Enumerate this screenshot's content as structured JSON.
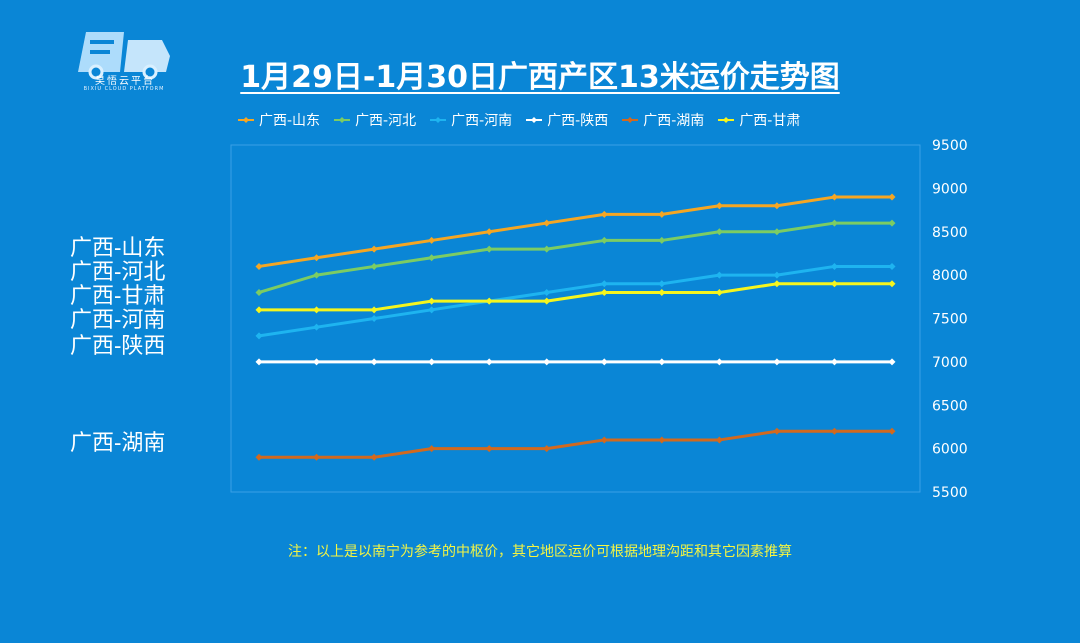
{
  "logo": {
    "name": "旲悟云平台",
    "subtitle": "BIXIU CLOUD PLATFORM",
    "icon": "truck-logo-icon"
  },
  "chart_data": {
    "type": "line",
    "title": "1月29日-1月30日广西产区13米运价走势图",
    "xlabel": "",
    "ylabel": "",
    "ylim": [
      5500,
      9500
    ],
    "yticks": [
      9500,
      9000,
      8500,
      8000,
      7500,
      7000,
      6500,
      6000,
      5500
    ],
    "grid": false,
    "legend_position": "top",
    "series": [
      {
        "name": "广西-山东",
        "color": "#f5a623",
        "values": [
          8100,
          8200,
          8300,
          8400,
          8500,
          8600,
          8700,
          8700,
          8800,
          8800,
          8900,
          8900
        ]
      },
      {
        "name": "广西-河北",
        "color": "#7ccc63",
        "values": [
          7800,
          8000,
          8100,
          8200,
          8300,
          8300,
          8400,
          8400,
          8500,
          8500,
          8600,
          8600
        ]
      },
      {
        "name": "广西-河南",
        "color": "#1eb4f0",
        "values": [
          7300,
          7400,
          7500,
          7600,
          7700,
          7800,
          7900,
          7900,
          8000,
          8000,
          8100,
          8100
        ]
      },
      {
        "name": "广西-陕西",
        "color": "#ffffff",
        "values": [
          7000,
          7000,
          7000,
          7000,
          7000,
          7000,
          7000,
          7000,
          7000,
          7000,
          7000,
          7000
        ]
      },
      {
        "name": "广西-湖南",
        "color": "#d2691e",
        "values": [
          5900,
          5900,
          5900,
          6000,
          6000,
          6000,
          6100,
          6100,
          6100,
          6200,
          6200,
          6200
        ]
      },
      {
        "name": "广西-甘肃",
        "color": "#f5f51e",
        "values": [
          7600,
          7600,
          7600,
          7700,
          7700,
          7700,
          7800,
          7800,
          7800,
          7900,
          7900,
          7900
        ]
      }
    ]
  },
  "side_labels": [
    {
      "text": "广西-山东",
      "value": 8300
    },
    {
      "text": "广西-河北",
      "value": 8020
    },
    {
      "text": "广西-甘肃",
      "value": 7750
    },
    {
      "text": "广西-河南",
      "value": 7470
    },
    {
      "text": "广西-陕西",
      "value": 7170
    },
    {
      "text": "广西-湖南",
      "value": 6050
    }
  ],
  "footnote": "注：以上是以南宁为参考的中枢价，其它地区运价可根据地理沟距和其它因素推算"
}
